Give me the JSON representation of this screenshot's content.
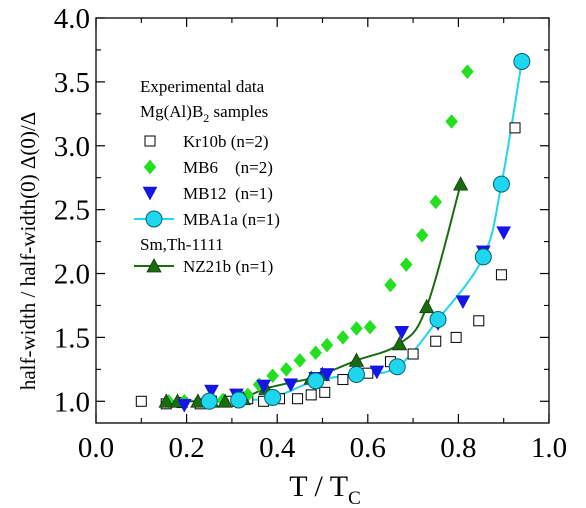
{
  "chart_data": {
    "type": "scatter",
    "title": "",
    "xlabel": {
      "main": "T / T",
      "sub": "C"
    },
    "ylabel": {
      "main": "half-width / half-width(0)  Δ(0)/Δ"
    },
    "xlim": [
      0.0,
      1.0
    ],
    "ylim": [
      0.83,
      4.0
    ],
    "x_ticks": [
      0.0,
      0.2,
      0.4,
      0.6,
      0.8,
      1.0
    ],
    "x_tick_labels": [
      "0.0",
      "0.2",
      "0.4",
      "0.6",
      "0.8",
      "1.0"
    ],
    "y_ticks": [
      1.0,
      1.5,
      2.0,
      2.5,
      3.0,
      3.5,
      4.0
    ],
    "y_tick_labels": [
      "1.0",
      "1.5",
      "2.0",
      "2.5",
      "3.0",
      "3.5",
      "4.0"
    ],
    "grid": false,
    "legend": {
      "placement": "top-left",
      "header_lines": [
        {
          "text": "Experimental data",
          "sub": ""
        },
        {
          "text": "Mg(Al)B",
          "sub": "2",
          "after": " samples"
        }
      ],
      "group_label": "Sm,Th-1111"
    },
    "series": [
      {
        "name": "Kr10b (n=2)",
        "marker": "open-square",
        "color": "#000000",
        "line": false,
        "x": [
          0.1,
          0.155,
          0.19,
          0.23,
          0.255,
          0.295,
          0.335,
          0.37,
          0.405,
          0.445,
          0.475,
          0.505,
          0.545,
          0.6,
          0.65,
          0.7,
          0.75,
          0.795,
          0.845,
          0.895,
          0.925
        ],
        "y": [
          1.0,
          0.98,
          0.99,
          0.98,
          1.0,
          1.0,
          1.02,
          1.0,
          1.02,
          1.02,
          1.05,
          1.07,
          1.17,
          1.22,
          1.31,
          1.37,
          1.47,
          1.5,
          1.63,
          1.99,
          3.14
        ]
      },
      {
        "name": "MB6    (n=2)",
        "marker": "diamond",
        "color": "#22e01e",
        "line": false,
        "x": [
          0.16,
          0.195,
          0.25,
          0.28,
          0.315,
          0.335,
          0.36,
          0.39,
          0.42,
          0.45,
          0.485,
          0.51,
          0.545,
          0.575,
          0.605,
          0.65,
          0.685,
          0.72,
          0.75,
          0.785,
          0.82
        ],
        "y": [
          1.0,
          1.0,
          1.0,
          1.01,
          1.02,
          1.05,
          1.13,
          1.2,
          1.25,
          1.32,
          1.38,
          1.44,
          1.5,
          1.57,
          1.58,
          1.91,
          2.07,
          2.3,
          2.56,
          3.19,
          3.58
        ]
      },
      {
        "name": "MB12  (n=1)",
        "marker": "down-triangle",
        "color": "#1515e6",
        "line": false,
        "x": [
          0.195,
          0.255,
          0.31,
          0.37,
          0.43,
          0.485,
          0.51,
          0.62,
          0.675,
          0.755,
          0.81,
          0.855,
          0.9
        ],
        "y": [
          0.97,
          1.08,
          1.05,
          1.12,
          1.13,
          1.18,
          1.21,
          1.23,
          1.54,
          1.61,
          1.78,
          2.17,
          2.32
        ]
      },
      {
        "name": "MBA1a (n=1)",
        "marker": "circle",
        "color": "#1ed7ee",
        "line": true,
        "x": [
          0.25,
          0.315,
          0.39,
          0.485,
          0.575,
          0.665,
          0.755,
          0.855,
          0.895,
          0.94
        ],
        "y": [
          1.0,
          1.01,
          1.03,
          1.16,
          1.21,
          1.27,
          1.64,
          2.13,
          2.7,
          3.66
        ]
      },
      {
        "name": "NZ21b (n=1)",
        "marker": "up-triangle",
        "color": "#1b6b10",
        "line": true,
        "x": [
          0.155,
          0.18,
          0.225,
          0.255,
          0.285,
          0.325,
          0.375,
          0.475,
          0.5,
          0.575,
          0.67,
          0.73,
          0.805
        ],
        "y": [
          1.0,
          1.0,
          1.0,
          1.0,
          1.0,
          1.02,
          1.1,
          1.18,
          1.21,
          1.32,
          1.45,
          1.74,
          2.7
        ]
      }
    ]
  }
}
